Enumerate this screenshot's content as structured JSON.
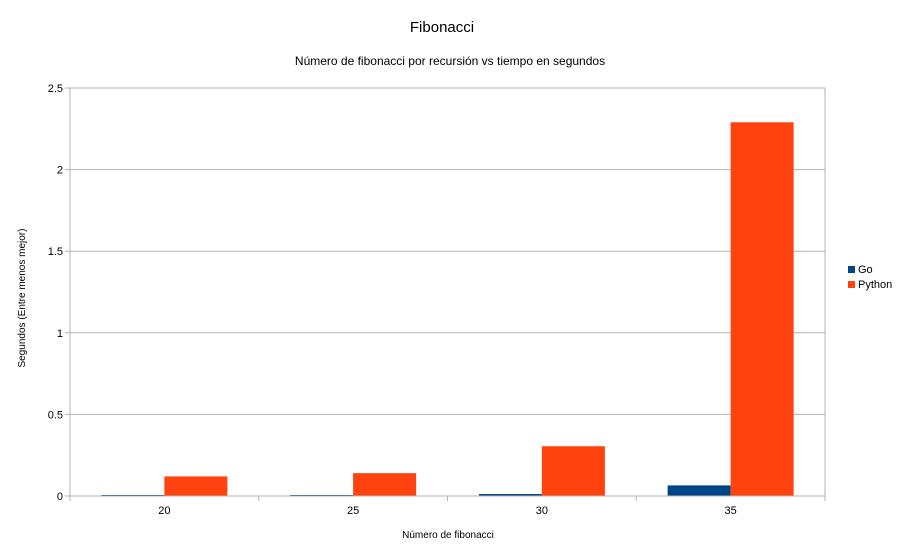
{
  "chart_data": {
    "type": "bar",
    "title": "Fibonacci",
    "subtitle": "Número de fibonacci por recursión vs tiempo en segundos",
    "xlabel": "Número de fibonacci",
    "ylabel": "Segundos (Entre menos mejor)",
    "categories": [
      "20",
      "25",
      "30",
      "35"
    ],
    "series": [
      {
        "name": "Go",
        "values": [
          0.003,
          0.004,
          0.012,
          0.065
        ]
      },
      {
        "name": "Python",
        "values": [
          0.12,
          0.14,
          0.305,
          2.29
        ]
      }
    ],
    "ylim": [
      0,
      2.5
    ],
    "yticks": [
      "0",
      "0.5",
      "1",
      "1.5",
      "2",
      "2.5"
    ],
    "grid": true,
    "legend_position": "right",
    "colors": {
      "Go": "#004586",
      "Python": "#ff420e",
      "grid": "#b3b3b3"
    }
  }
}
